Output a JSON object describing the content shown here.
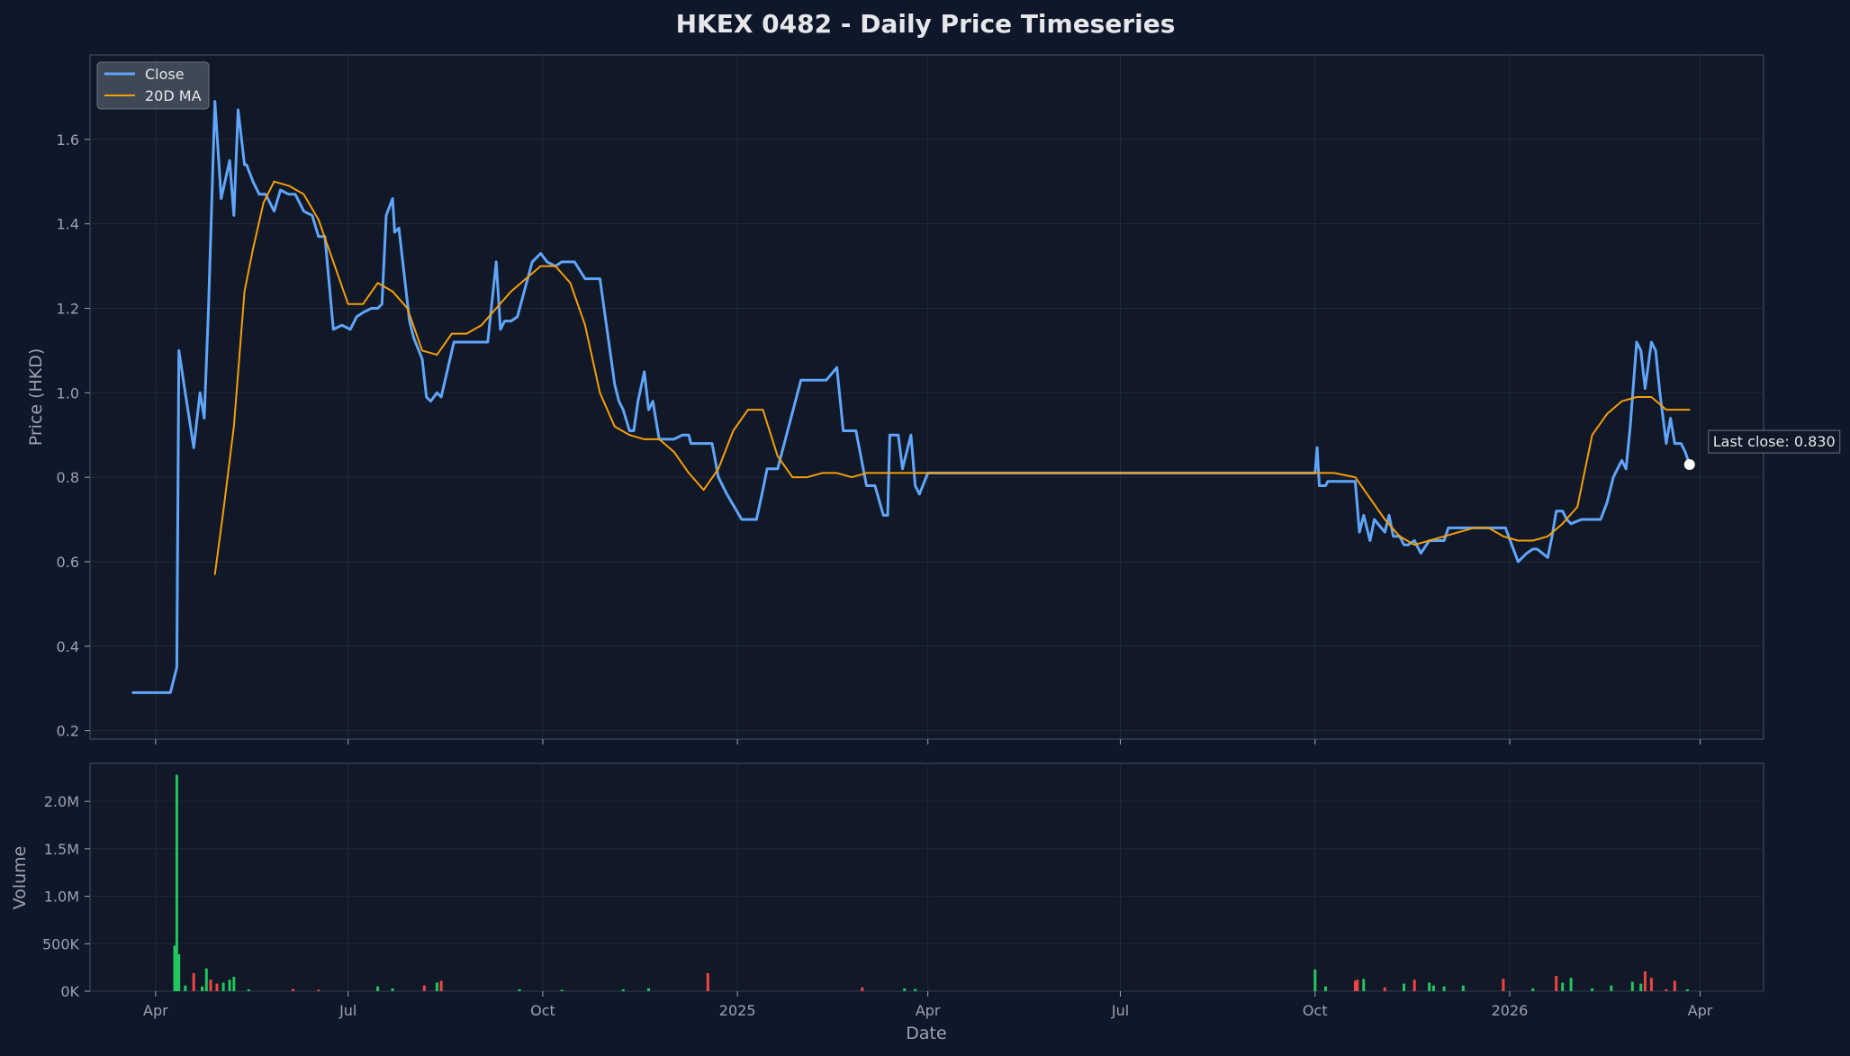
{
  "title": "HKEX 0482 - Daily Price Timeseries",
  "colors": {
    "background": "#0f172a",
    "panel": "#111827",
    "grid": "#1f2a3a",
    "frame": "#374151",
    "close": "#60a5fa",
    "ma": "#f59e0b",
    "volume_up": "#22c55e",
    "volume_down": "#ef4444",
    "text": "#e5e7eb",
    "muted_text": "#9ca3af"
  },
  "legend": {
    "location": "top-left",
    "items": [
      {
        "label": "Close",
        "color": "#60a5fa"
      },
      {
        "label": "20D MA",
        "color": "#f59e0b"
      }
    ]
  },
  "annotation": {
    "text": "Last close: 0.830",
    "date": "2026-03-27",
    "value": 0.83
  },
  "chart_data": [
    {
      "type": "line",
      "panel": "price",
      "title": "HKEX 0482 - Daily Price Timeseries",
      "ylabel": "Price (HKD)",
      "xlabel": "",
      "xlim": [
        "2024-03-01",
        "2026-05-01"
      ],
      "ylim": [
        0.18,
        1.8
      ],
      "grid": true,
      "y_ticks": [
        0.2,
        0.4,
        0.6,
        0.8,
        1.0,
        1.2,
        1.4,
        1.6
      ],
      "y_tick_labels": [
        "0.2",
        "0.4",
        "0.6",
        "0.8",
        "1.0",
        "1.2",
        "1.4",
        "1.6"
      ],
      "series": [
        {
          "name": "Close",
          "color": "#60a5fa",
          "x": [
            "2024-03-21",
            "2024-04-08",
            "2024-04-11",
            "2024-04-12",
            "2024-04-15",
            "2024-04-19",
            "2024-04-22",
            "2024-04-24",
            "2024-04-26",
            "2024-04-29",
            "2024-05-02",
            "2024-05-06",
            "2024-05-08",
            "2024-05-10",
            "2024-05-13",
            "2024-05-14",
            "2024-05-17",
            "2024-05-20",
            "2024-05-23",
            "2024-05-27",
            "2024-05-30",
            "2024-06-03",
            "2024-06-06",
            "2024-06-10",
            "2024-06-14",
            "2024-06-17",
            "2024-06-20",
            "2024-06-24",
            "2024-06-28",
            "2024-07-02",
            "2024-07-05",
            "2024-07-08",
            "2024-07-12",
            "2024-07-15",
            "2024-07-17",
            "2024-07-19",
            "2024-07-22",
            "2024-07-23",
            "2024-07-25",
            "2024-07-30",
            "2024-08-01",
            "2024-08-05",
            "2024-08-07",
            "2024-08-09",
            "2024-08-12",
            "2024-08-14",
            "2024-08-20",
            "2024-08-30",
            "2024-09-05",
            "2024-09-09",
            "2024-09-11",
            "2024-09-13",
            "2024-09-16",
            "2024-09-19",
            "2024-09-26",
            "2024-09-30",
            "2024-10-03",
            "2024-10-07",
            "2024-10-10",
            "2024-10-16",
            "2024-10-21",
            "2024-10-24",
            "2024-10-28",
            "2024-11-04",
            "2024-11-06",
            "2024-11-08",
            "2024-11-11",
            "2024-11-13",
            "2024-11-15",
            "2024-11-18",
            "2024-11-20",
            "2024-11-22",
            "2024-11-25",
            "2024-12-02",
            "2024-12-06",
            "2024-12-09",
            "2024-12-10",
            "2024-12-12",
            "2024-12-13",
            "2024-12-16",
            "2024-12-18",
            "2024-12-20",
            "2024-12-23",
            "2024-12-27",
            "2025-01-03",
            "2025-01-08",
            "2025-01-10",
            "2025-01-13",
            "2025-01-15",
            "2025-01-20",
            "2025-01-31",
            "2025-02-03",
            "2025-02-12",
            "2025-02-17",
            "2025-02-20",
            "2025-02-26",
            "2025-03-03",
            "2025-03-05",
            "2025-03-07",
            "2025-03-11",
            "2025-03-13",
            "2025-03-14",
            "2025-03-18",
            "2025-03-20",
            "2025-03-24",
            "2025-03-26",
            "2025-03-28",
            "2025-04-01",
            "2025-05-01",
            "2025-10-01",
            "2025-10-02",
            "2025-10-03",
            "2025-10-06",
            "2025-10-07",
            "2025-10-09",
            "2025-10-20",
            "2025-10-22",
            "2025-10-24",
            "2025-10-27",
            "2025-10-29",
            "2025-11-03",
            "2025-11-05",
            "2025-11-07",
            "2025-11-10",
            "2025-11-12",
            "2025-11-14",
            "2025-11-17",
            "2025-11-20",
            "2025-11-24",
            "2025-12-01",
            "2025-12-03",
            "2025-12-05",
            "2025-12-08",
            "2025-12-19",
            "2025-12-30",
            "2026-01-02",
            "2026-01-05",
            "2026-01-07",
            "2026-01-09",
            "2026-01-12",
            "2026-01-14",
            "2026-01-19",
            "2026-01-21",
            "2026-01-23",
            "2026-01-26",
            "2026-01-28",
            "2026-01-30",
            "2026-02-04",
            "2026-02-09",
            "2026-02-13",
            "2026-02-16",
            "2026-02-19",
            "2026-02-23",
            "2026-02-25",
            "2026-02-27",
            "2026-03-02",
            "2026-03-04",
            "2026-03-06",
            "2026-03-09",
            "2026-03-11",
            "2026-03-13",
            "2026-03-16",
            "2026-03-18",
            "2026-03-20",
            "2026-03-23",
            "2026-03-25",
            "2026-03-27"
          ],
          "y": [
            0.29,
            0.29,
            0.35,
            1.1,
            1.0,
            0.87,
            1.0,
            0.94,
            1.2,
            1.69,
            1.46,
            1.55,
            1.42,
            1.67,
            1.54,
            1.54,
            1.5,
            1.47,
            1.47,
            1.43,
            1.48,
            1.47,
            1.47,
            1.43,
            1.42,
            1.37,
            1.37,
            1.15,
            1.16,
            1.15,
            1.18,
            1.19,
            1.2,
            1.2,
            1.21,
            1.42,
            1.46,
            1.38,
            1.39,
            1.17,
            1.13,
            1.08,
            0.99,
            0.98,
            1.0,
            0.99,
            1.12,
            1.12,
            1.12,
            1.31,
            1.15,
            1.17,
            1.17,
            1.18,
            1.31,
            1.33,
            1.31,
            1.3,
            1.31,
            1.31,
            1.27,
            1.27,
            1.27,
            1.02,
            0.98,
            0.96,
            0.91,
            0.91,
            0.98,
            1.05,
            0.96,
            0.98,
            0.89,
            0.89,
            0.9,
            0.9,
            0.88,
            0.88,
            0.88,
            0.88,
            0.88,
            0.88,
            0.8,
            0.76,
            0.7,
            0.7,
            0.7,
            0.77,
            0.82,
            0.82,
            1.03,
            1.03,
            1.03,
            1.06,
            0.91,
            0.91,
            0.78,
            0.78,
            0.78,
            0.71,
            0.71,
            0.9,
            0.9,
            0.82,
            0.9,
            0.78,
            0.76,
            0.81,
            0.81,
            0.81,
            0.87,
            0.78,
            0.78,
            0.79,
            0.79,
            0.79,
            0.67,
            0.71,
            0.65,
            0.7,
            0.67,
            0.71,
            0.66,
            0.66,
            0.64,
            0.64,
            0.65,
            0.62,
            0.65,
            0.65,
            0.68,
            0.68,
            0.68,
            0.68,
            0.68,
            0.64,
            0.6,
            0.61,
            0.62,
            0.63,
            0.63,
            0.61,
            0.66,
            0.72,
            0.72,
            0.7,
            0.69,
            0.7,
            0.7,
            0.7,
            0.74,
            0.8,
            0.84,
            0.82,
            0.92,
            1.12,
            1.1,
            1.01,
            1.12,
            1.1,
            1.0,
            0.88,
            0.94,
            0.88,
            0.88,
            0.86,
            0.83
          ]
        },
        {
          "name": "20D MA",
          "color": "#f59e0b",
          "x": [
            "2024-04-29",
            "2024-05-03",
            "2024-05-08",
            "2024-05-13",
            "2024-05-17",
            "2024-05-22",
            "2024-05-27",
            "2024-06-03",
            "2024-06-10",
            "2024-06-17",
            "2024-06-24",
            "2024-07-01",
            "2024-07-08",
            "2024-07-15",
            "2024-07-22",
            "2024-07-29",
            "2024-08-05",
            "2024-08-12",
            "2024-08-19",
            "2024-08-26",
            "2024-09-02",
            "2024-09-09",
            "2024-09-16",
            "2024-09-23",
            "2024-09-30",
            "2024-10-07",
            "2024-10-14",
            "2024-10-21",
            "2024-10-28",
            "2024-11-04",
            "2024-11-11",
            "2024-11-18",
            "2024-11-25",
            "2024-12-02",
            "2024-12-09",
            "2024-12-16",
            "2024-12-23",
            "2024-12-30",
            "2025-01-06",
            "2025-01-13",
            "2025-01-20",
            "2025-01-27",
            "2025-02-03",
            "2025-02-10",
            "2025-02-17",
            "2025-02-24",
            "2025-03-03",
            "2025-03-10",
            "2025-03-17",
            "2025-03-24",
            "2025-03-31",
            "2025-04-07",
            "2025-04-14",
            "2025-04-21",
            "2025-05-01",
            "2025-10-01",
            "2025-10-10",
            "2025-10-20",
            "2025-10-27",
            "2025-11-03",
            "2025-11-10",
            "2025-11-17",
            "2025-11-24",
            "2025-12-01",
            "2025-12-08",
            "2025-12-15",
            "2025-12-22",
            "2025-12-29",
            "2026-01-05",
            "2026-01-12",
            "2026-01-19",
            "2026-01-26",
            "2026-02-02",
            "2026-02-09",
            "2026-02-16",
            "2026-02-23",
            "2026-03-02",
            "2026-03-09",
            "2026-03-16",
            "2026-03-20",
            "2026-03-25",
            "2026-03-27"
          ],
          "y": [
            0.57,
            0.72,
            0.92,
            1.24,
            1.34,
            1.45,
            1.5,
            1.49,
            1.47,
            1.41,
            1.31,
            1.21,
            1.21,
            1.26,
            1.24,
            1.2,
            1.1,
            1.09,
            1.14,
            1.14,
            1.16,
            1.2,
            1.24,
            1.27,
            1.3,
            1.3,
            1.26,
            1.16,
            1.0,
            0.92,
            0.9,
            0.89,
            0.89,
            0.86,
            0.81,
            0.77,
            0.82,
            0.91,
            0.96,
            0.96,
            0.85,
            0.8,
            0.8,
            0.81,
            0.81,
            0.8,
            0.81,
            0.81,
            0.81,
            0.81,
            0.81,
            0.81,
            0.81,
            0.81,
            0.81,
            0.81,
            0.81,
            0.8,
            0.75,
            0.7,
            0.66,
            0.64,
            0.65,
            0.66,
            0.67,
            0.68,
            0.68,
            0.66,
            0.65,
            0.65,
            0.66,
            0.69,
            0.73,
            0.9,
            0.95,
            0.98,
            0.99,
            0.99,
            0.96,
            0.96,
            0.96,
            0.96
          ]
        }
      ]
    },
    {
      "type": "bar",
      "panel": "volume",
      "ylabel": "Volume",
      "xlabel": "Date",
      "xlim": [
        "2024-03-01",
        "2026-05-01"
      ],
      "ylim": [
        0,
        2400000
      ],
      "grid": true,
      "y_ticks": [
        0,
        500000,
        1000000,
        1500000,
        2000000
      ],
      "y_tick_labels": [
        "0K",
        "500K",
        "1.0M",
        "1.5M",
        "2.0M"
      ],
      "x_ticks": [
        "2024-04-01",
        "2024-07-01",
        "2024-10-01",
        "2025-01-01",
        "2025-04-01",
        "2025-07-01",
        "2025-10-01",
        "2026-01-01",
        "2026-04-01"
      ],
      "x_tick_labels": [
        "Apr",
        "Jul",
        "Oct",
        "2025",
        "Apr",
        "Jul",
        "Oct",
        "2026",
        "Apr"
      ],
      "bars": [
        {
          "x": "2024-04-10",
          "value": 480000,
          "dir": "up"
        },
        {
          "x": "2024-04-11",
          "value": 2280000,
          "dir": "up"
        },
        {
          "x": "2024-04-12",
          "value": 390000,
          "dir": "up"
        },
        {
          "x": "2024-04-15",
          "value": 60000,
          "dir": "up"
        },
        {
          "x": "2024-04-19",
          "value": 190000,
          "dir": "down"
        },
        {
          "x": "2024-04-23",
          "value": 50000,
          "dir": "up"
        },
        {
          "x": "2024-04-25",
          "value": 240000,
          "dir": "up"
        },
        {
          "x": "2024-04-27",
          "value": 120000,
          "dir": "down"
        },
        {
          "x": "2024-04-30",
          "value": 80000,
          "dir": "down"
        },
        {
          "x": "2024-05-03",
          "value": 90000,
          "dir": "up"
        },
        {
          "x": "2024-05-06",
          "value": 120000,
          "dir": "up"
        },
        {
          "x": "2024-05-08",
          "value": 150000,
          "dir": "up"
        },
        {
          "x": "2024-05-15",
          "value": 20000,
          "dir": "up"
        },
        {
          "x": "2024-06-05",
          "value": 25000,
          "dir": "down"
        },
        {
          "x": "2024-06-17",
          "value": 15000,
          "dir": "down"
        },
        {
          "x": "2024-07-15",
          "value": 50000,
          "dir": "up"
        },
        {
          "x": "2024-07-22",
          "value": 30000,
          "dir": "up"
        },
        {
          "x": "2024-08-06",
          "value": 60000,
          "dir": "down"
        },
        {
          "x": "2024-08-12",
          "value": 90000,
          "dir": "up"
        },
        {
          "x": "2024-08-14",
          "value": 110000,
          "dir": "down"
        },
        {
          "x": "2024-09-20",
          "value": 20000,
          "dir": "up"
        },
        {
          "x": "2024-10-10",
          "value": 15000,
          "dir": "up"
        },
        {
          "x": "2024-11-08",
          "value": 20000,
          "dir": "up"
        },
        {
          "x": "2024-11-20",
          "value": 30000,
          "dir": "up"
        },
        {
          "x": "2024-12-18",
          "value": 190000,
          "dir": "down"
        },
        {
          "x": "2025-03-01",
          "value": 40000,
          "dir": "down"
        },
        {
          "x": "2025-03-21",
          "value": 30000,
          "dir": "up"
        },
        {
          "x": "2025-03-26",
          "value": 25000,
          "dir": "up"
        },
        {
          "x": "2025-10-01",
          "value": 230000,
          "dir": "up"
        },
        {
          "x": "2025-10-06",
          "value": 50000,
          "dir": "up"
        },
        {
          "x": "2025-10-20",
          "value": 110000,
          "dir": "down"
        },
        {
          "x": "2025-10-21",
          "value": 120000,
          "dir": "down"
        },
        {
          "x": "2025-10-24",
          "value": 130000,
          "dir": "up"
        },
        {
          "x": "2025-11-03",
          "value": 40000,
          "dir": "down"
        },
        {
          "x": "2025-11-12",
          "value": 80000,
          "dir": "up"
        },
        {
          "x": "2025-11-17",
          "value": 120000,
          "dir": "down"
        },
        {
          "x": "2025-11-24",
          "value": 90000,
          "dir": "up"
        },
        {
          "x": "2025-11-26",
          "value": 60000,
          "dir": "up"
        },
        {
          "x": "2025-12-01",
          "value": 50000,
          "dir": "up"
        },
        {
          "x": "2025-12-10",
          "value": 60000,
          "dir": "up"
        },
        {
          "x": "2025-12-29",
          "value": 130000,
          "dir": "down"
        },
        {
          "x": "2026-01-12",
          "value": 30000,
          "dir": "up"
        },
        {
          "x": "2026-01-23",
          "value": 160000,
          "dir": "down"
        },
        {
          "x": "2026-01-26",
          "value": 90000,
          "dir": "up"
        },
        {
          "x": "2026-01-30",
          "value": 140000,
          "dir": "up"
        },
        {
          "x": "2026-02-09",
          "value": 30000,
          "dir": "up"
        },
        {
          "x": "2026-02-18",
          "value": 60000,
          "dir": "up"
        },
        {
          "x": "2026-02-28",
          "value": 100000,
          "dir": "up"
        },
        {
          "x": "2026-03-04",
          "value": 80000,
          "dir": "up"
        },
        {
          "x": "2026-03-06",
          "value": 210000,
          "dir": "down"
        },
        {
          "x": "2026-03-09",
          "value": 140000,
          "dir": "down"
        },
        {
          "x": "2026-03-16",
          "value": 20000,
          "dir": "down"
        },
        {
          "x": "2026-03-20",
          "value": 110000,
          "dir": "down"
        },
        {
          "x": "2026-03-26",
          "value": 20000,
          "dir": "up"
        }
      ]
    }
  ]
}
